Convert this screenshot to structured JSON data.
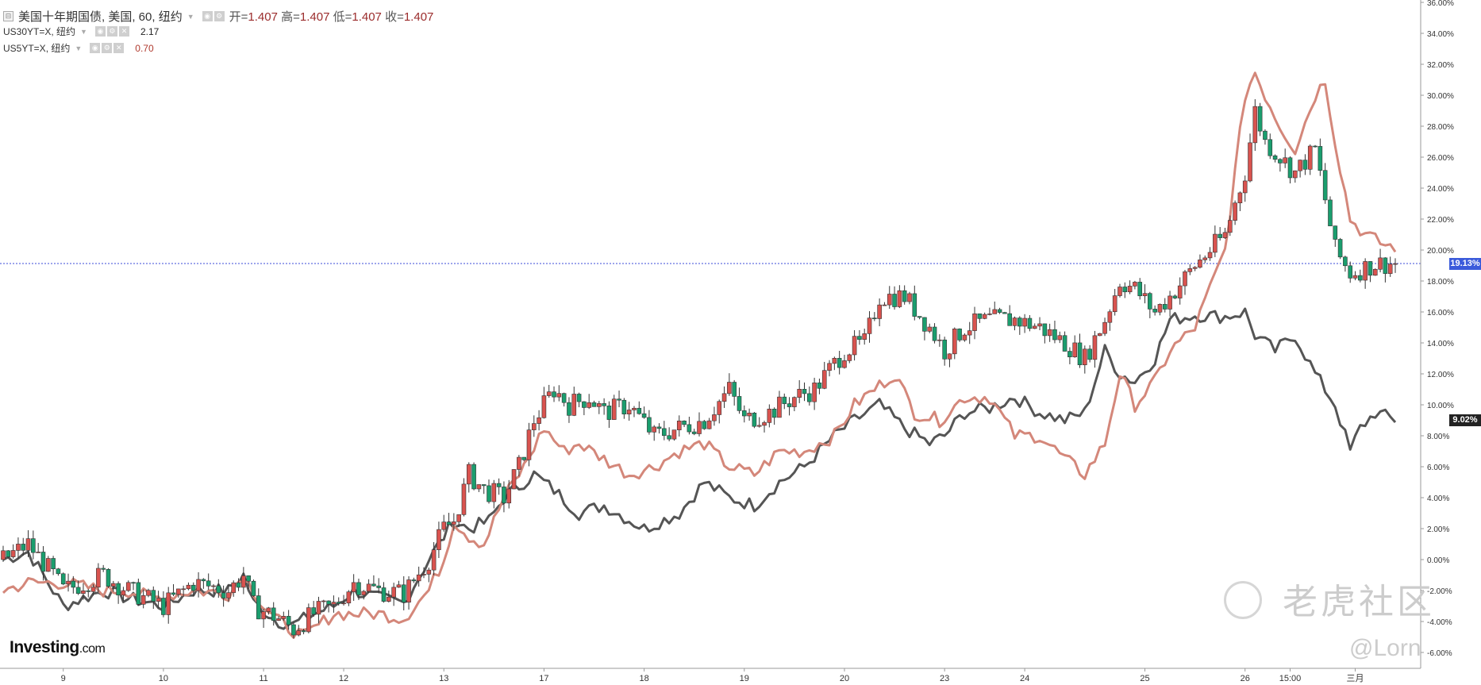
{
  "legend": {
    "main_title": "美国十年期国债, 美国, 60, 纽约",
    "open_label": "开=",
    "open_value": "1.407",
    "high_label": "高=",
    "high_value": "1.407",
    "low_label": "低=",
    "low_value": "1.407",
    "close_label": "收=",
    "close_value": "1.407",
    "series2_name": "US30YT=X, 纽约",
    "series2_value": "2.17",
    "series3_name": "US5YT=X, 纽约",
    "series3_value": "0.70"
  },
  "brand": {
    "name": "Investing",
    "suffix": ".com"
  },
  "watermark": {
    "text": "老虎社区",
    "handle": "@Lorn"
  },
  "colors": {
    "up": "#1a9e6e",
    "down": "#d9534f",
    "series_30y": "#555555",
    "series_5y": "#d4877a",
    "hline": "#3b4bd8",
    "tag_blue": "#3b5bdb",
    "tag_dark": "#222222"
  },
  "icons": [
    "collapse-icon",
    "settings-icon",
    "close-icon"
  ],
  "chart_data": {
    "type": "candlestick-with-lines",
    "y_axis_unit": "%",
    "ylim": [
      -7,
      36
    ],
    "y_ticks": [
      "36.00%",
      "34.00%",
      "32.00%",
      "30.00%",
      "28.00%",
      "26.00%",
      "24.00%",
      "22.00%",
      "20.00%",
      "18.00%",
      "16.00%",
      "14.00%",
      "12.00%",
      "10.00%",
      "8.00%",
      "6.00%",
      "4.00%",
      "2.00%",
      "0.00%",
      "-2.00%",
      "-4.00%",
      "-6.00%"
    ],
    "x_ticks": [
      {
        "label": "9",
        "t": 12
      },
      {
        "label": "10",
        "t": 32
      },
      {
        "label": "11",
        "t": 52
      },
      {
        "label": "12",
        "t": 68
      },
      {
        "label": "13",
        "t": 88
      },
      {
        "label": "17",
        "t": 108
      },
      {
        "label": "18",
        "t": 128
      },
      {
        "label": "19",
        "t": 148
      },
      {
        "label": "20",
        "t": 168
      },
      {
        "label": "23",
        "t": 188
      },
      {
        "label": "24",
        "t": 204
      },
      {
        "label": "25",
        "t": 228
      },
      {
        "label": "26",
        "t": 248
      },
      {
        "label": "15:00",
        "t": 257
      },
      {
        "label": "三月",
        "t": 270
      }
    ],
    "x_range": [
      0,
      278
    ],
    "horizontal_line": 19.13,
    "price_tags": [
      {
        "label": "19.13%",
        "value": 19.13,
        "style": "blue"
      },
      {
        "label": "9.02%",
        "value": 9.02,
        "style": "dark"
      }
    ],
    "main_series_name": "美国十年期国债",
    "main_anchors": [
      [
        0,
        0
      ],
      [
        5,
        1
      ],
      [
        10,
        -1
      ],
      [
        12,
        -2
      ],
      [
        20,
        -1
      ],
      [
        25,
        -2
      ],
      [
        32,
        -3
      ],
      [
        38,
        -1.5
      ],
      [
        45,
        -2
      ],
      [
        48,
        -1
      ],
      [
        50,
        -3
      ],
      [
        55,
        -3.8
      ],
      [
        58,
        -4.5
      ],
      [
        62,
        -3.5
      ],
      [
        66,
        -3
      ],
      [
        70,
        -1.5
      ],
      [
        75,
        -2
      ],
      [
        80,
        -2.2
      ],
      [
        85,
        0
      ],
      [
        88,
        2
      ],
      [
        90,
        2.5
      ],
      [
        93,
        5.5
      ],
      [
        96,
        4.5
      ],
      [
        100,
        4
      ],
      [
        103,
        6
      ],
      [
        106,
        9
      ],
      [
        110,
        11
      ],
      [
        113,
        10
      ],
      [
        117,
        10.5
      ],
      [
        120,
        9.5
      ],
      [
        125,
        10
      ],
      [
        130,
        8
      ],
      [
        135,
        8.5
      ],
      [
        140,
        9
      ],
      [
        145,
        11
      ],
      [
        148,
        9
      ],
      [
        153,
        9.5
      ],
      [
        158,
        10.5
      ],
      [
        162,
        11
      ],
      [
        168,
        13.5
      ],
      [
        172,
        14
      ],
      [
        175,
        17
      ],
      [
        180,
        17
      ],
      [
        185,
        15
      ],
      [
        188,
        13.5
      ],
      [
        192,
        15
      ],
      [
        197,
        15.5
      ],
      [
        202,
        15.5
      ],
      [
        207,
        15
      ],
      [
        212,
        14
      ],
      [
        216,
        13
      ],
      [
        220,
        15.5
      ],
      [
        223,
        18
      ],
      [
        226,
        17.5
      ],
      [
        230,
        16
      ],
      [
        233,
        17
      ],
      [
        238,
        19
      ],
      [
        244,
        21
      ],
      [
        248,
        25
      ],
      [
        250,
        29
      ],
      [
        252,
        27
      ],
      [
        255,
        26
      ],
      [
        258,
        25
      ],
      [
        262,
        26.5
      ],
      [
        266,
        20
      ],
      [
        269,
        18.5
      ],
      [
        274,
        19.1
      ],
      [
        278,
        19.13
      ]
    ],
    "series": [
      {
        "name": "US30YT=X",
        "value_label": "2.17",
        "anchors": [
          [
            0,
            0
          ],
          [
            5,
            0.5
          ],
          [
            12,
            -3
          ],
          [
            20,
            -2
          ],
          [
            25,
            -2.5
          ],
          [
            32,
            -3
          ],
          [
            38,
            -2
          ],
          [
            45,
            -2
          ],
          [
            48,
            -1
          ],
          [
            50,
            -2.8
          ],
          [
            55,
            -4
          ],
          [
            58,
            -4.2
          ],
          [
            62,
            -3.5
          ],
          [
            66,
            -3
          ],
          [
            70,
            -2
          ],
          [
            75,
            -2.5
          ],
          [
            80,
            -2.8
          ],
          [
            85,
            0
          ],
          [
            88,
            1.5
          ],
          [
            90,
            2.5
          ],
          [
            93,
            2
          ],
          [
            97,
            2.5
          ],
          [
            100,
            4
          ],
          [
            106,
            5.5
          ],
          [
            110,
            4.5
          ],
          [
            115,
            3
          ],
          [
            120,
            3.5
          ],
          [
            128,
            2
          ],
          [
            135,
            3
          ],
          [
            140,
            5
          ],
          [
            145,
            4
          ],
          [
            150,
            3.5
          ],
          [
            155,
            5
          ],
          [
            160,
            6
          ],
          [
            166,
            8
          ],
          [
            170,
            9
          ],
          [
            175,
            10
          ],
          [
            180,
            8.5
          ],
          [
            185,
            7.5
          ],
          [
            188,
            8
          ],
          [
            192,
            9.5
          ],
          [
            197,
            9.8
          ],
          [
            202,
            10.5
          ],
          [
            207,
            9.5
          ],
          [
            212,
            9
          ],
          [
            216,
            9.5
          ],
          [
            220,
            13.5
          ],
          [
            223,
            12
          ],
          [
            226,
            11.5
          ],
          [
            230,
            13
          ],
          [
            233,
            15.5
          ],
          [
            238,
            15.8
          ],
          [
            244,
            15.7
          ],
          [
            248,
            16
          ],
          [
            250,
            14.5
          ],
          [
            254,
            13.5
          ],
          [
            258,
            14.5
          ],
          [
            262,
            12
          ],
          [
            266,
            10
          ],
          [
            269,
            7
          ],
          [
            271,
            8.5
          ],
          [
            274,
            9.5
          ],
          [
            278,
            9.02
          ]
        ]
      },
      {
        "name": "US5YT=X",
        "value_label": "0.70",
        "anchors": [
          [
            0,
            -2
          ],
          [
            5,
            -1.5
          ],
          [
            12,
            -1.5
          ],
          [
            20,
            -2
          ],
          [
            25,
            -2
          ],
          [
            30,
            -2.5
          ],
          [
            38,
            -2
          ],
          [
            45,
            -2.2
          ],
          [
            48,
            -1
          ],
          [
            52,
            -3
          ],
          [
            55,
            -4
          ],
          [
            60,
            -5
          ],
          [
            64,
            -4
          ],
          [
            66,
            -3.5
          ],
          [
            70,
            -3.5
          ],
          [
            75,
            -3.5
          ],
          [
            80,
            -3.8
          ],
          [
            85,
            -2
          ],
          [
            88,
            0
          ],
          [
            90,
            2.5
          ],
          [
            93,
            1.5
          ],
          [
            96,
            1
          ],
          [
            100,
            4
          ],
          [
            104,
            6
          ],
          [
            108,
            8.5
          ],
          [
            112,
            7
          ],
          [
            115,
            7.5
          ],
          [
            120,
            6.5
          ],
          [
            125,
            5.5
          ],
          [
            130,
            6
          ],
          [
            135,
            7
          ],
          [
            140,
            7.5
          ],
          [
            145,
            6
          ],
          [
            150,
            5.5
          ],
          [
            155,
            7
          ],
          [
            160,
            7
          ],
          [
            166,
            8
          ],
          [
            170,
            10
          ],
          [
            174,
            11
          ],
          [
            178,
            12
          ],
          [
            182,
            9.5
          ],
          [
            187,
            9
          ],
          [
            192,
            10.5
          ],
          [
            197,
            10.5
          ],
          [
            202,
            8
          ],
          [
            207,
            8
          ],
          [
            212,
            6.5
          ],
          [
            216,
            5.5
          ],
          [
            220,
            7.5
          ],
          [
            223,
            12
          ],
          [
            226,
            10
          ],
          [
            230,
            11.5
          ],
          [
            233,
            13.5
          ],
          [
            238,
            15
          ],
          [
            244,
            20
          ],
          [
            248,
            30
          ],
          [
            250,
            31.5
          ],
          [
            252,
            30
          ],
          [
            255,
            28
          ],
          [
            258,
            26.5
          ],
          [
            262,
            30
          ],
          [
            264,
            31
          ],
          [
            266,
            27
          ],
          [
            269,
            22
          ],
          [
            272,
            21
          ],
          [
            276,
            20.3
          ],
          [
            278,
            20.2
          ]
        ]
      }
    ]
  }
}
